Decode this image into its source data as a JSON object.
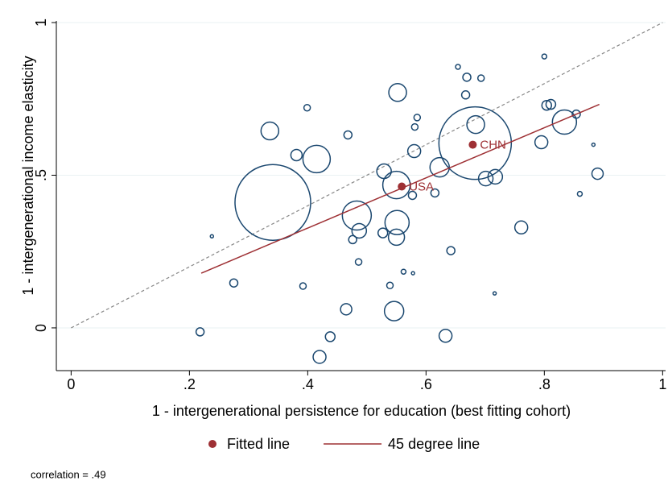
{
  "chart_data": {
    "type": "scatter",
    "xlabel": "1 - intergenerational persistence for education (best fitting cohort)",
    "ylabel": "1 - intergenerational income elasticity",
    "xlim": [
      -0.025,
      1.005
    ],
    "ylim": [
      -0.14,
      1.0
    ],
    "xticks": [
      0,
      {
        "value": 0.2,
        "label": ".2"
      },
      {
        "value": 0.4,
        "label": ".4"
      },
      {
        "value": 0.6,
        "label": ".6"
      },
      {
        "value": 0.8,
        "label": ".8"
      },
      1
    ],
    "yticks": [
      0,
      {
        "value": 0.5,
        "label": ".5"
      },
      1
    ],
    "grid": true,
    "bubbles": {
      "color": "#1a476f",
      "x": [
        0.341,
        0.683,
        0.55,
        0.415,
        0.336,
        0.483,
        0.551,
        0.552,
        0.623,
        0.834,
        0.717,
        0.487,
        0.529,
        0.58,
        0.381,
        0.684,
        0.701,
        0.546,
        0.465,
        0.42,
        0.438,
        0.633,
        0.218,
        0.275,
        0.392,
        0.55,
        0.527,
        0.476,
        0.486,
        0.539,
        0.468,
        0.399,
        0.585,
        0.581,
        0.669,
        0.693,
        0.654,
        0.8,
        0.761,
        0.795,
        0.804,
        0.811,
        0.89,
        0.854,
        0.667,
        0.615,
        0.577,
        0.238,
        0.716,
        0.578,
        0.562,
        0.86,
        0.883,
        0.642
      ],
      "y": [
        0.411,
        0.605,
        0.468,
        0.553,
        0.645,
        0.368,
        0.345,
        0.771,
        0.526,
        0.674,
        0.495,
        0.318,
        0.513,
        0.579,
        0.566,
        0.666,
        0.489,
        0.055,
        0.061,
        -0.095,
        -0.029,
        -0.026,
        -0.013,
        0.147,
        0.137,
        0.297,
        0.311,
        0.289,
        0.216,
        0.139,
        0.632,
        0.721,
        0.689,
        0.658,
        0.821,
        0.818,
        0.855,
        0.889,
        0.329,
        0.608,
        0.729,
        0.732,
        0.505,
        0.7,
        0.763,
        0.442,
        0.434,
        0.3,
        0.113,
        0.179,
        0.184,
        0.439,
        0.6,
        0.253
      ],
      "sizes": [
        47,
        45,
        17,
        17,
        11,
        18,
        15,
        11,
        12,
        15,
        9,
        9,
        9,
        8,
        7,
        11,
        9,
        12,
        7,
        8,
        6,
        8,
        5,
        5,
        4,
        10,
        6,
        5,
        4,
        4,
        5,
        4,
        4,
        4,
        5,
        4,
        3,
        3,
        8,
        8,
        6,
        6,
        7,
        5,
        5,
        5,
        5,
        2,
        2,
        2,
        3,
        3,
        2,
        5
      ]
    },
    "highlights": {
      "color": "#9e3034",
      "labels": [
        "CHN",
        "USA"
      ],
      "x": [
        0.679,
        0.559
      ],
      "y": [
        0.6,
        0.463
      ]
    },
    "fitted": {
      "color": "#9e3034",
      "x": [
        0.22,
        0.893
      ],
      "y": [
        0.179,
        0.732
      ]
    },
    "diagonal": {
      "color": "#888888",
      "x": [
        0,
        1
      ],
      "y": [
        0,
        1
      ]
    },
    "legend": [
      {
        "label": "Fitted line",
        "symbol": "dot"
      },
      {
        "label": "45 degree line",
        "symbol": "line"
      }
    ],
    "annotation": "correlation = .49"
  }
}
